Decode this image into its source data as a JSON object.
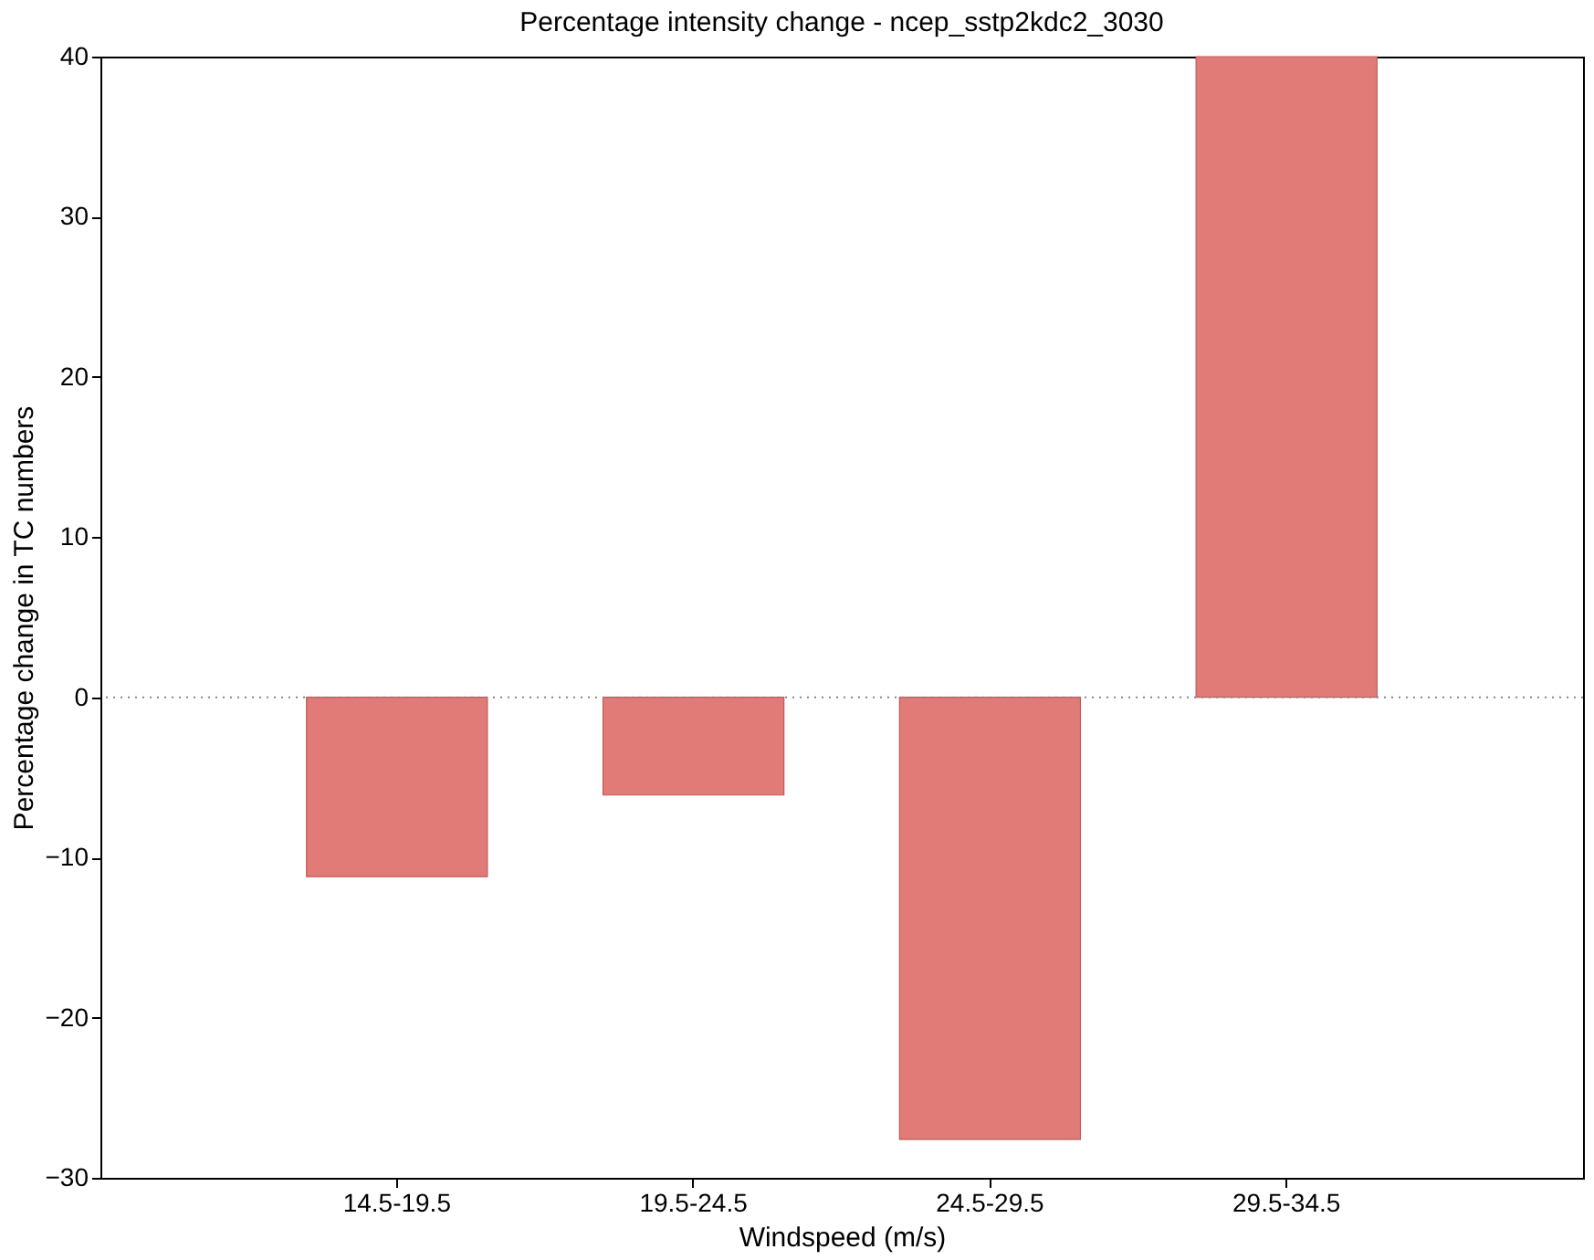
{
  "chart_data": {
    "type": "bar",
    "title": "Percentage intensity change - ncep_sstp2kdc2_3030",
    "xlabel": "Windspeed (m/s)",
    "ylabel": "Percentage change in TC numbers",
    "categories": [
      "14.5-19.5",
      "19.5-24.5",
      "24.5-29.5",
      "29.5-34.5"
    ],
    "values": [
      -11.2,
      -6.1,
      -27.6,
      40
    ],
    "color": "#e07b78",
    "ylim": [
      -30,
      40
    ],
    "yticks": [
      -30,
      -20,
      -10,
      0,
      10,
      20,
      30,
      40
    ],
    "grid": false,
    "ref_lines": [
      {
        "axis": "y",
        "value": 0,
        "color": "#888888",
        "line_style": "dotted"
      }
    ]
  }
}
